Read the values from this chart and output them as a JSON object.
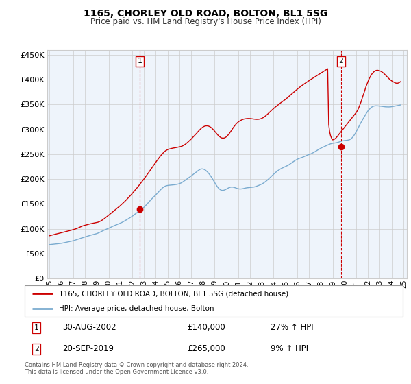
{
  "title": "1165, CHORLEY OLD ROAD, BOLTON, BL1 5SG",
  "subtitle": "Price paid vs. HM Land Registry's House Price Index (HPI)",
  "ytick_values": [
    0,
    50000,
    100000,
    150000,
    200000,
    250000,
    300000,
    350000,
    400000,
    450000
  ],
  "ylim": [
    0,
    460000
  ],
  "xlim_start": 1994.8,
  "xlim_end": 2025.3,
  "xtick_years": [
    1995,
    1996,
    1997,
    1998,
    1999,
    2000,
    2001,
    2002,
    2003,
    2004,
    2005,
    2006,
    2007,
    2008,
    2009,
    2010,
    2011,
    2012,
    2013,
    2014,
    2015,
    2016,
    2017,
    2018,
    2019,
    2020,
    2021,
    2022,
    2023,
    2024,
    2025
  ],
  "transaction1_x": 2002.66,
  "transaction1_y": 140000,
  "transaction1_label": "1",
  "transaction1_date": "30-AUG-2002",
  "transaction1_price": "£140,000",
  "transaction1_hpi": "27% ↑ HPI",
  "transaction2_x": 2019.72,
  "transaction2_y": 265000,
  "transaction2_label": "2",
  "transaction2_date": "20-SEP-2019",
  "transaction2_price": "£265,000",
  "transaction2_hpi": "9% ↑ HPI",
  "red_line_color": "#cc0000",
  "blue_line_color": "#7aabcf",
  "fill_color": "#ddeeff",
  "grid_color": "#cccccc",
  "background_color": "#ffffff",
  "plot_bg_color": "#eef4fb",
  "legend_label_red": "1165, CHORLEY OLD ROAD, BOLTON, BL1 5SG (detached house)",
  "legend_label_blue": "HPI: Average price, detached house, Bolton",
  "footer_text": "Contains HM Land Registry data © Crown copyright and database right 2024.\nThis data is licensed under the Open Government Licence v3.0.",
  "hpi_data_x": [
    1995.0,
    1995.08,
    1995.17,
    1995.25,
    1995.33,
    1995.42,
    1995.5,
    1995.58,
    1995.67,
    1995.75,
    1995.83,
    1995.92,
    1996.0,
    1996.08,
    1996.17,
    1996.25,
    1996.33,
    1996.42,
    1996.5,
    1996.58,
    1996.67,
    1996.75,
    1996.83,
    1996.92,
    1997.0,
    1997.08,
    1997.17,
    1997.25,
    1997.33,
    1997.42,
    1997.5,
    1997.58,
    1997.67,
    1997.75,
    1997.83,
    1997.92,
    1998.0,
    1998.08,
    1998.17,
    1998.25,
    1998.33,
    1998.42,
    1998.5,
    1998.58,
    1998.67,
    1998.75,
    1998.83,
    1998.92,
    1999.0,
    1999.08,
    1999.17,
    1999.25,
    1999.33,
    1999.42,
    1999.5,
    1999.58,
    1999.67,
    1999.75,
    1999.83,
    1999.92,
    2000.0,
    2000.08,
    2000.17,
    2000.25,
    2000.33,
    2000.42,
    2000.5,
    2000.58,
    2000.67,
    2000.75,
    2000.83,
    2000.92,
    2001.0,
    2001.08,
    2001.17,
    2001.25,
    2001.33,
    2001.42,
    2001.5,
    2001.58,
    2001.67,
    2001.75,
    2001.83,
    2001.92,
    2002.0,
    2002.08,
    2002.17,
    2002.25,
    2002.33,
    2002.42,
    2002.5,
    2002.58,
    2002.67,
    2002.75,
    2002.83,
    2002.92,
    2003.0,
    2003.08,
    2003.17,
    2003.25,
    2003.33,
    2003.42,
    2003.5,
    2003.58,
    2003.67,
    2003.75,
    2003.83,
    2003.92,
    2004.0,
    2004.08,
    2004.17,
    2004.25,
    2004.33,
    2004.42,
    2004.5,
    2004.58,
    2004.67,
    2004.75,
    2004.83,
    2004.92,
    2005.0,
    2005.08,
    2005.17,
    2005.25,
    2005.33,
    2005.42,
    2005.5,
    2005.58,
    2005.67,
    2005.75,
    2005.83,
    2005.92,
    2006.0,
    2006.08,
    2006.17,
    2006.25,
    2006.33,
    2006.42,
    2006.5,
    2006.58,
    2006.67,
    2006.75,
    2006.83,
    2006.92,
    2007.0,
    2007.08,
    2007.17,
    2007.25,
    2007.33,
    2007.42,
    2007.5,
    2007.58,
    2007.67,
    2007.75,
    2007.83,
    2007.92,
    2008.0,
    2008.08,
    2008.17,
    2008.25,
    2008.33,
    2008.42,
    2008.5,
    2008.58,
    2008.67,
    2008.75,
    2008.83,
    2008.92,
    2009.0,
    2009.08,
    2009.17,
    2009.25,
    2009.33,
    2009.42,
    2009.5,
    2009.58,
    2009.67,
    2009.75,
    2009.83,
    2009.92,
    2010.0,
    2010.08,
    2010.17,
    2010.25,
    2010.33,
    2010.42,
    2010.5,
    2010.58,
    2010.67,
    2010.75,
    2010.83,
    2010.92,
    2011.0,
    2011.08,
    2011.17,
    2011.25,
    2011.33,
    2011.42,
    2011.5,
    2011.58,
    2011.67,
    2011.75,
    2011.83,
    2011.92,
    2012.0,
    2012.08,
    2012.17,
    2012.25,
    2012.33,
    2012.42,
    2012.5,
    2012.58,
    2012.67,
    2012.75,
    2012.83,
    2012.92,
    2013.0,
    2013.08,
    2013.17,
    2013.25,
    2013.33,
    2013.42,
    2013.5,
    2013.58,
    2013.67,
    2013.75,
    2013.83,
    2013.92,
    2014.0,
    2014.08,
    2014.17,
    2014.25,
    2014.33,
    2014.42,
    2014.5,
    2014.58,
    2014.67,
    2014.75,
    2014.83,
    2014.92,
    2015.0,
    2015.08,
    2015.17,
    2015.25,
    2015.33,
    2015.42,
    2015.5,
    2015.58,
    2015.67,
    2015.75,
    2015.83,
    2015.92,
    2016.0,
    2016.08,
    2016.17,
    2016.25,
    2016.33,
    2016.42,
    2016.5,
    2016.58,
    2016.67,
    2016.75,
    2016.83,
    2016.92,
    2017.0,
    2017.08,
    2017.17,
    2017.25,
    2017.33,
    2017.42,
    2017.5,
    2017.58,
    2017.67,
    2017.75,
    2017.83,
    2017.92,
    2018.0,
    2018.08,
    2018.17,
    2018.25,
    2018.33,
    2018.42,
    2018.5,
    2018.58,
    2018.67,
    2018.75,
    2018.83,
    2018.92,
    2019.0,
    2019.08,
    2019.17,
    2019.25,
    2019.33,
    2019.42,
    2019.5,
    2019.58,
    2019.67,
    2019.75,
    2019.83,
    2019.92,
    2020.0,
    2020.08,
    2020.17,
    2020.25,
    2020.33,
    2020.42,
    2020.5,
    2020.58,
    2020.67,
    2020.75,
    2020.83,
    2020.92,
    2021.0,
    2021.08,
    2021.17,
    2021.25,
    2021.33,
    2021.42,
    2021.5,
    2021.58,
    2021.67,
    2021.75,
    2021.83,
    2021.92,
    2022.0,
    2022.08,
    2022.17,
    2022.25,
    2022.33,
    2022.42,
    2022.5,
    2022.58,
    2022.67,
    2022.75,
    2022.83,
    2022.92,
    2023.0,
    2023.08,
    2023.17,
    2023.25,
    2023.33,
    2023.42,
    2023.5,
    2023.58,
    2023.67,
    2023.75,
    2023.83,
    2023.92,
    2024.0,
    2024.08,
    2024.17,
    2024.25,
    2024.33,
    2024.42,
    2024.5,
    2024.58,
    2024.67,
    2024.75
  ],
  "hpi_data_y": [
    68000,
    68200,
    68400,
    68600,
    68800,
    69000,
    69200,
    69400,
    69600,
    69800,
    70000,
    70300,
    70600,
    71000,
    71400,
    71800,
    72200,
    72600,
    73000,
    73400,
    73800,
    74200,
    74700,
    75200,
    75700,
    76300,
    76900,
    77500,
    78200,
    78900,
    79600,
    80300,
    81000,
    81600,
    82200,
    82800,
    83400,
    84000,
    84700,
    85300,
    85900,
    86500,
    87100,
    87600,
    88100,
    88600,
    89100,
    89600,
    90200,
    91000,
    91800,
    92700,
    93700,
    94700,
    95700,
    96600,
    97500,
    98400,
    99200,
    100000,
    100900,
    101800,
    102700,
    103700,
    104700,
    105600,
    106400,
    107200,
    108000,
    108800,
    109600,
    110400,
    111200,
    112100,
    113100,
    114100,
    115200,
    116400,
    117600,
    118800,
    120000,
    121200,
    122500,
    123800,
    125100,
    126500,
    127900,
    129400,
    130900,
    132500,
    134000,
    135500,
    137000,
    138500,
    140100,
    141700,
    143300,
    145200,
    147200,
    149300,
    151500,
    153700,
    155900,
    158100,
    160200,
    162200,
    164200,
    166100,
    168000,
    170100,
    172300,
    174500,
    176600,
    178700,
    180600,
    182400,
    183900,
    185100,
    186000,
    186700,
    187100,
    187400,
    187600,
    187800,
    188000,
    188200,
    188400,
    188600,
    188900,
    189200,
    189600,
    190100,
    190700,
    191500,
    192400,
    193500,
    194800,
    196100,
    197500,
    199000,
    200400,
    201900,
    203300,
    204700,
    206200,
    207700,
    209200,
    210700,
    212100,
    213600,
    215200,
    216800,
    218200,
    219400,
    220200,
    220500,
    220300,
    219700,
    218700,
    217300,
    215600,
    213500,
    211200,
    208600,
    205800,
    202800,
    199600,
    196300,
    193000,
    189700,
    186600,
    183800,
    181500,
    179600,
    178200,
    177400,
    177200,
    177400,
    178000,
    178900,
    180000,
    181200,
    182200,
    183000,
    183600,
    183900,
    183900,
    183600,
    183100,
    182400,
    181700,
    181000,
    180500,
    180100,
    180000,
    180100,
    180400,
    180800,
    181300,
    181800,
    182200,
    182500,
    182700,
    182900,
    183000,
    183200,
    183400,
    183700,
    184000,
    184500,
    185100,
    185800,
    186600,
    187400,
    188200,
    189000,
    190000,
    191100,
    192400,
    193800,
    195300,
    196900,
    198600,
    200400,
    202200,
    204100,
    206000,
    207900,
    209800,
    211600,
    213300,
    215000,
    216600,
    218000,
    219200,
    220400,
    221500,
    222500,
    223400,
    224300,
    225200,
    226100,
    227000,
    228100,
    229400,
    230700,
    232100,
    233500,
    234900,
    236300,
    237600,
    238800,
    239900,
    240800,
    241600,
    242300,
    242900,
    243600,
    244400,
    245200,
    246100,
    247000,
    247900,
    248700,
    249400,
    250100,
    250900,
    251800,
    252800,
    253900,
    255000,
    256200,
    257400,
    258600,
    259800,
    261000,
    262100,
    263100,
    264000,
    264900,
    265800,
    266700,
    267600,
    268500,
    269400,
    270300,
    271000,
    271500,
    271900,
    272200,
    272500,
    272800,
    273200,
    273700,
    274300,
    275000,
    275700,
    276300,
    276800,
    277200,
    277500,
    277700,
    277900,
    278100,
    278500,
    279100,
    280100,
    281600,
    283500,
    285800,
    288600,
    291800,
    295300,
    299000,
    302900,
    306800,
    310600,
    314200,
    317700,
    321100,
    324500,
    327900,
    331200,
    334400,
    337300,
    339700,
    341800,
    343600,
    345100,
    346200,
    346900,
    347300,
    347500,
    347500,
    347400,
    347200,
    347000,
    346700,
    346400,
    346100,
    345800,
    345600,
    345400,
    345300,
    345200,
    345200,
    345300,
    345400,
    345700,
    346000,
    346400,
    346800,
    347200,
    347600,
    348000,
    348400,
    348800,
    349200
  ],
  "red_data_x": [
    1995.0,
    1995.08,
    1995.17,
    1995.25,
    1995.33,
    1995.42,
    1995.5,
    1995.58,
    1995.67,
    1995.75,
    1995.83,
    1995.92,
    1996.0,
    1996.08,
    1996.17,
    1996.25,
    1996.33,
    1996.42,
    1996.5,
    1996.58,
    1996.67,
    1996.75,
    1996.83,
    1996.92,
    1997.0,
    1997.08,
    1997.17,
    1997.25,
    1997.33,
    1997.42,
    1997.5,
    1997.58,
    1997.67,
    1997.75,
    1997.83,
    1997.92,
    1998.0,
    1998.08,
    1998.17,
    1998.25,
    1998.33,
    1998.42,
    1998.5,
    1998.58,
    1998.67,
    1998.75,
    1998.83,
    1998.92,
    1999.0,
    1999.08,
    1999.17,
    1999.25,
    1999.33,
    1999.42,
    1999.5,
    1999.58,
    1999.67,
    1999.75,
    1999.83,
    1999.92,
    2000.0,
    2000.08,
    2000.17,
    2000.25,
    2000.33,
    2000.42,
    2000.5,
    2000.58,
    2000.67,
    2000.75,
    2000.83,
    2000.92,
    2001.0,
    2001.08,
    2001.17,
    2001.25,
    2001.33,
    2001.42,
    2001.5,
    2001.58,
    2001.67,
    2001.75,
    2001.83,
    2001.92,
    2002.0,
    2002.08,
    2002.17,
    2002.25,
    2002.33,
    2002.42,
    2002.5,
    2002.58,
    2002.67,
    2002.75,
    2002.83,
    2002.92,
    2003.0,
    2003.08,
    2003.17,
    2003.25,
    2003.33,
    2003.42,
    2003.5,
    2003.58,
    2003.67,
    2003.75,
    2003.83,
    2003.92,
    2004.0,
    2004.08,
    2004.17,
    2004.25,
    2004.33,
    2004.42,
    2004.5,
    2004.58,
    2004.67,
    2004.75,
    2004.83,
    2004.92,
    2005.0,
    2005.08,
    2005.17,
    2005.25,
    2005.33,
    2005.42,
    2005.5,
    2005.58,
    2005.67,
    2005.75,
    2005.83,
    2005.92,
    2006.0,
    2006.08,
    2006.17,
    2006.25,
    2006.33,
    2006.42,
    2006.5,
    2006.58,
    2006.67,
    2006.75,
    2006.83,
    2006.92,
    2007.0,
    2007.08,
    2007.17,
    2007.25,
    2007.33,
    2007.42,
    2007.5,
    2007.58,
    2007.67,
    2007.75,
    2007.83,
    2007.92,
    2008.0,
    2008.08,
    2008.17,
    2008.25,
    2008.33,
    2008.42,
    2008.5,
    2008.58,
    2008.67,
    2008.75,
    2008.83,
    2008.92,
    2009.0,
    2009.08,
    2009.17,
    2009.25,
    2009.33,
    2009.42,
    2009.5,
    2009.58,
    2009.67,
    2009.75,
    2009.83,
    2009.92,
    2010.0,
    2010.08,
    2010.17,
    2010.25,
    2010.33,
    2010.42,
    2010.5,
    2010.58,
    2010.67,
    2010.75,
    2010.83,
    2010.92,
    2011.0,
    2011.08,
    2011.17,
    2011.25,
    2011.33,
    2011.42,
    2011.5,
    2011.58,
    2011.67,
    2011.75,
    2011.83,
    2011.92,
    2012.0,
    2012.08,
    2012.17,
    2012.25,
    2012.33,
    2012.42,
    2012.5,
    2012.58,
    2012.67,
    2012.75,
    2012.83,
    2012.92,
    2013.0,
    2013.08,
    2013.17,
    2013.25,
    2013.33,
    2013.42,
    2013.5,
    2013.58,
    2013.67,
    2013.75,
    2013.83,
    2013.92,
    2014.0,
    2014.08,
    2014.17,
    2014.25,
    2014.33,
    2014.42,
    2014.5,
    2014.58,
    2014.67,
    2014.75,
    2014.83,
    2014.92,
    2015.0,
    2015.08,
    2015.17,
    2015.25,
    2015.33,
    2015.42,
    2015.5,
    2015.58,
    2015.67,
    2015.75,
    2015.83,
    2015.92,
    2016.0,
    2016.08,
    2016.17,
    2016.25,
    2016.33,
    2016.42,
    2016.5,
    2016.58,
    2016.67,
    2016.75,
    2016.83,
    2016.92,
    2017.0,
    2017.08,
    2017.17,
    2017.25,
    2017.33,
    2017.42,
    2017.5,
    2017.58,
    2017.67,
    2017.75,
    2017.83,
    2017.92,
    2018.0,
    2018.08,
    2018.17,
    2018.25,
    2018.33,
    2018.42,
    2018.5,
    2018.58,
    2018.67,
    2018.75,
    2018.83,
    2018.92,
    2019.0,
    2019.08,
    2019.17,
    2019.25,
    2019.33,
    2019.42,
    2019.5,
    2019.58,
    2019.67,
    2019.75,
    2019.83,
    2019.92,
    2020.0,
    2020.08,
    2020.17,
    2020.25,
    2020.33,
    2020.42,
    2020.5,
    2020.58,
    2020.67,
    2020.75,
    2020.83,
    2020.92,
    2021.0,
    2021.08,
    2021.17,
    2021.25,
    2021.33,
    2021.42,
    2021.5,
    2021.58,
    2021.67,
    2021.75,
    2021.83,
    2021.92,
    2022.0,
    2022.08,
    2022.17,
    2022.25,
    2022.33,
    2022.42,
    2022.5,
    2022.58,
    2022.67,
    2022.75,
    2022.83,
    2022.92,
    2023.0,
    2023.08,
    2023.17,
    2023.25,
    2023.33,
    2023.42,
    2023.5,
    2023.58,
    2023.67,
    2023.75,
    2023.83,
    2023.92,
    2024.0,
    2024.08,
    2024.17,
    2024.25,
    2024.33,
    2024.42,
    2024.5,
    2024.58,
    2024.67,
    2024.75
  ],
  "red_data_y": [
    86000,
    86500,
    87000,
    87500,
    88000,
    88500,
    89000,
    89500,
    90000,
    90500,
    91000,
    91500,
    92000,
    92500,
    93000,
    93500,
    94000,
    94500,
    95000,
    95500,
    96000,
    96500,
    97000,
    97600,
    98200,
    98800,
    99400,
    100100,
    100800,
    101600,
    102500,
    103400,
    104400,
    105200,
    105900,
    106500,
    107000,
    107600,
    108100,
    108700,
    109200,
    109700,
    110100,
    110500,
    110900,
    111300,
    111700,
    112100,
    112500,
    113000,
    113700,
    114500,
    115500,
    116700,
    118000,
    119400,
    120900,
    122400,
    123900,
    125500,
    127100,
    128700,
    130400,
    132000,
    133700,
    135400,
    137000,
    138600,
    140200,
    141800,
    143400,
    145000,
    146700,
    148500,
    150300,
    152200,
    154100,
    156000,
    158000,
    160000,
    162100,
    164200,
    166400,
    168600,
    170800,
    173100,
    175400,
    177800,
    180100,
    182500,
    184900,
    187400,
    189900,
    192400,
    195000,
    197500,
    200100,
    202700,
    205400,
    208100,
    210900,
    213700,
    216600,
    219500,
    222400,
    225200,
    228100,
    230900,
    233700,
    236400,
    239100,
    241800,
    244400,
    246900,
    249200,
    251400,
    253500,
    255300,
    256900,
    258200,
    259200,
    260000,
    260600,
    261100,
    261600,
    262100,
    262500,
    262800,
    263200,
    263500,
    263900,
    264200,
    264600,
    265100,
    265700,
    266500,
    267500,
    268700,
    270000,
    271500,
    273200,
    274900,
    276700,
    278500,
    280400,
    282400,
    284500,
    286600,
    288700,
    290900,
    293100,
    295400,
    297600,
    299700,
    301600,
    303300,
    304700,
    305800,
    306600,
    307100,
    307200,
    307000,
    306400,
    305500,
    304200,
    302600,
    300700,
    298600,
    296300,
    293900,
    291500,
    289200,
    287100,
    285300,
    283900,
    282900,
    282400,
    282400,
    282900,
    283900,
    285400,
    287300,
    289600,
    292200,
    295000,
    297900,
    300900,
    303800,
    306500,
    309000,
    311300,
    313300,
    315000,
    316400,
    317600,
    318700,
    319600,
    320300,
    320900,
    321300,
    321600,
    321800,
    321900,
    321900,
    321800,
    321600,
    321300,
    321000,
    320700,
    320400,
    320200,
    320200,
    320300,
    320500,
    320900,
    321500,
    322300,
    323300,
    324500,
    325900,
    327500,
    329200,
    331000,
    332900,
    334800,
    336700,
    338500,
    340300,
    342100,
    343800,
    345500,
    347100,
    348700,
    350200,
    351700,
    353200,
    354700,
    356100,
    357600,
    359000,
    360500,
    362100,
    363700,
    365400,
    367100,
    368900,
    370600,
    372400,
    374100,
    375800,
    377500,
    379200,
    380900,
    382500,
    384100,
    385700,
    387200,
    388700,
    390100,
    391500,
    392900,
    394200,
    395500,
    396800,
    398100,
    399400,
    400700,
    402000,
    403200,
    404500,
    405700,
    406900,
    408200,
    409400,
    410700,
    411900,
    413200,
    414400,
    415700,
    417000,
    418200,
    419500,
    420800,
    422200,
    310000,
    295000,
    287000,
    282000,
    279000,
    279500,
    280500,
    282000,
    284000,
    286500,
    289000,
    291500,
    294000,
    296500,
    299000,
    301500,
    304000,
    306500,
    309000,
    311500,
    314000,
    316500,
    319000,
    321500,
    324000,
    326500,
    329000,
    331500,
    334000,
    337000,
    341000,
    345500,
    350500,
    356000,
    362000,
    368000,
    374000,
    380000,
    386000,
    391500,
    396500,
    401000,
    405000,
    408500,
    411500,
    414000,
    416000,
    417500,
    418500,
    419000,
    419000,
    418500,
    418000,
    417000,
    416000,
    414500,
    413000,
    411000,
    409000,
    407000,
    405000,
    403000,
    401000,
    399500,
    398000,
    396500,
    395500,
    394500,
    393500,
    393000,
    393000,
    393500,
    394500,
    396000
  ]
}
